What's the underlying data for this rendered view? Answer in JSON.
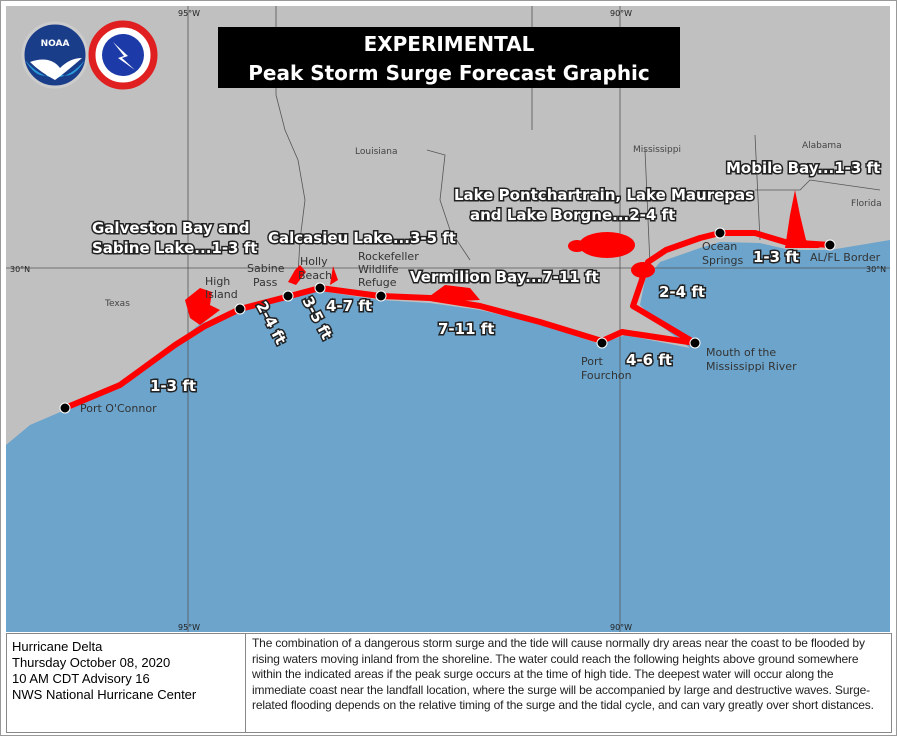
{
  "title": {
    "line1": "EXPERIMENTAL",
    "line2": "Peak Storm Surge Forecast Graphic"
  },
  "logos": {
    "noaa": "NOAA",
    "nws": "NATIONAL WEATHER SERVICE"
  },
  "colors": {
    "land": "#c0c0c0",
    "water": "#6ca4cc",
    "surge": "#ff0000",
    "title_bg": "#000000"
  },
  "grid": {
    "lon_labels": [
      "95°W",
      "90°W",
      "95°W",
      "90°W"
    ],
    "lat_labels": [
      "30°N",
      "30°N"
    ]
  },
  "states": [
    "Texas",
    "Louisiana",
    "Mississippi",
    "Alabama",
    "Florida"
  ],
  "places": [
    "Port O'Connor",
    "High Island",
    "Sabine Pass",
    "Holly Beach",
    "Rockefeller Wildlife Refuge",
    "Port Fourchon",
    "Mouth of the Mississippi River",
    "Ocean Springs",
    "AL/FL Border"
  ],
  "surge_labels": {
    "galveston": [
      "Galveston Bay and",
      "Sabine Lake...1-3 ft"
    ],
    "calcasieu": "Calcasieu Lake...3-5 ft",
    "vermilion": "Vermilion Bay...7-11 ft",
    "pontchartrain": [
      "Lake Pontchartrain, Lake Maurepas",
      "and Lake Borgne...2-4 ft"
    ],
    "mobile": "Mobile Bay...1-3 ft",
    "seg_port_oconnor_high_island": "1-3 ft",
    "seg_high_island_sabine": "2-4 ft",
    "seg_sabine_holly": "3-5 ft",
    "seg_holly_rockefeller": "4-7 ft",
    "seg_rockefeller_fourchon": "7-11 ft",
    "seg_fourchon_mouth": "4-6 ft",
    "seg_mouth_ocean_springs": "2-4 ft",
    "seg_ocean_springs_alfl": "1-3 ft"
  },
  "footer": {
    "storm": "Hurricane Delta",
    "date": "Thursday October 08, 2020",
    "advisory": "10 AM CDT Advisory 16",
    "issuer": "NWS National Hurricane Center",
    "description": "The combination of a dangerous storm surge and the tide will cause normally dry areas near the coast to be flooded by rising waters moving inland from the shoreline. The water could reach the following heights above ground somewhere within the indicated areas if the peak surge occurs at the time of high tide.  The deepest water will occur along the immediate coast near the landfall location, where the surge will be accompanied by large and destructive waves.  Surge-related flooding depends on the relative timing of the surge and the tidal cycle, and can vary greatly over short distances."
  }
}
